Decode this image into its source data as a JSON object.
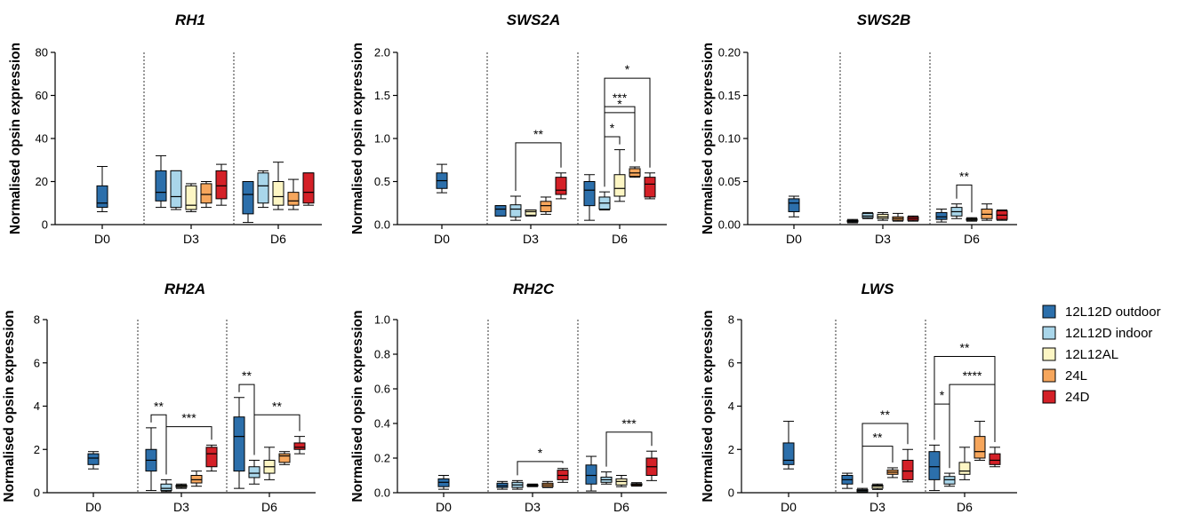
{
  "figure": {
    "y_axis_label": "Normalised opsin expression",
    "groups": [
      "D0",
      "D3",
      "D6"
    ]
  },
  "legend": [
    {
      "label": "12L12D outdoor",
      "color": "#2c6fab"
    },
    {
      "label": "12L12D indoor",
      "color": "#a9d6ea"
    },
    {
      "label": "12L12AL",
      "color": "#fdf6c4"
    },
    {
      "label": "24L",
      "color": "#f6a65c"
    },
    {
      "label": "24D",
      "color": "#d42027"
    }
  ],
  "chart_data": [
    {
      "type": "box",
      "title": "RH1",
      "ylabel": "Normalised opsin expression",
      "ylim": [
        0,
        80
      ],
      "yticks": [
        "0",
        "20",
        "40",
        "60",
        "80"
      ],
      "groups": [
        "D0",
        "D3",
        "D6"
      ],
      "series_names": [
        "12L12D outdoor",
        "12L12D indoor",
        "12L12AL",
        "24L",
        "24D"
      ],
      "boxes": [
        {
          "group": "D0",
          "series": 0,
          "min": 6,
          "q1": 8,
          "median": 10,
          "q3": 18,
          "max": 27
        },
        {
          "group": "D3",
          "series": 0,
          "min": 8,
          "q1": 11,
          "median": 15,
          "q3": 25,
          "max": 32
        },
        {
          "group": "D3",
          "series": 1,
          "min": 7,
          "q1": 8,
          "median": 13,
          "q3": 25,
          "max": 25
        },
        {
          "group": "D3",
          "series": 2,
          "min": 6,
          "q1": 7,
          "median": 9,
          "q3": 18,
          "max": 19
        },
        {
          "group": "D3",
          "series": 3,
          "min": 8,
          "q1": 10,
          "median": 14,
          "q3": 19,
          "max": 20
        },
        {
          "group": "D3",
          "series": 4,
          "min": 9,
          "q1": 12,
          "median": 18,
          "q3": 25,
          "max": 28
        },
        {
          "group": "D6",
          "series": 0,
          "min": 1,
          "q1": 5,
          "median": 14,
          "q3": 20,
          "max": 20
        },
        {
          "group": "D6",
          "series": 1,
          "min": 8,
          "q1": 10,
          "median": 18,
          "q3": 24,
          "max": 25
        },
        {
          "group": "D6",
          "series": 2,
          "min": 7,
          "q1": 9,
          "median": 13,
          "q3": 20,
          "max": 29
        },
        {
          "group": "D6",
          "series": 3,
          "min": 7,
          "q1": 9,
          "median": 11,
          "q3": 15,
          "max": 21
        },
        {
          "group": "D6",
          "series": 4,
          "min": 9,
          "q1": 10,
          "median": 15,
          "q3": 24,
          "max": 24
        }
      ],
      "annotations": []
    },
    {
      "type": "box",
      "title": "SWS2A",
      "ylabel": "Normalised opsin expression",
      "ylim": [
        0,
        2.0
      ],
      "yticks": [
        "0.0",
        "0.5",
        "1.0",
        "1.5",
        "2.0"
      ],
      "groups": [
        "D0",
        "D3",
        "D6"
      ],
      "series_names": [
        "12L12D outdoor",
        "12L12D indoor",
        "12L12AL",
        "24L",
        "24D"
      ],
      "boxes": [
        {
          "group": "D0",
          "series": 0,
          "min": 0.37,
          "q1": 0.42,
          "median": 0.51,
          "q3": 0.6,
          "max": 0.7
        },
        {
          "group": "D3",
          "series": 0,
          "min": 0.1,
          "q1": 0.1,
          "median": 0.18,
          "q3": 0.22,
          "max": 0.22
        },
        {
          "group": "D3",
          "series": 1,
          "min": 0.05,
          "q1": 0.09,
          "median": 0.18,
          "q3": 0.23,
          "max": 0.33
        },
        {
          "group": "D3",
          "series": 2,
          "min": 0.1,
          "q1": 0.11,
          "median": 0.15,
          "q3": 0.17,
          "max": 0.17
        },
        {
          "group": "D3",
          "series": 3,
          "min": 0.12,
          "q1": 0.15,
          "median": 0.22,
          "q3": 0.27,
          "max": 0.32
        },
        {
          "group": "D3",
          "series": 4,
          "min": 0.3,
          "q1": 0.35,
          "median": 0.4,
          "q3": 0.55,
          "max": 0.6
        },
        {
          "group": "D6",
          "series": 0,
          "min": 0.05,
          "q1": 0.22,
          "median": 0.4,
          "q3": 0.5,
          "max": 0.58
        },
        {
          "group": "D6",
          "series": 1,
          "min": 0.17,
          "q1": 0.18,
          "median": 0.25,
          "q3": 0.32,
          "max": 0.38
        },
        {
          "group": "D6",
          "series": 2,
          "min": 0.27,
          "q1": 0.33,
          "median": 0.42,
          "q3": 0.58,
          "max": 0.87
        },
        {
          "group": "D6",
          "series": 3,
          "min": 0.55,
          "q1": 0.56,
          "median": 0.6,
          "q3": 0.65,
          "max": 0.67
        },
        {
          "group": "D6",
          "series": 4,
          "min": 0.3,
          "q1": 0.32,
          "median": 0.47,
          "q3": 0.55,
          "max": 0.6
        }
      ],
      "annotations": [
        {
          "group": "D3",
          "from": 1,
          "to": 4,
          "y": 0.95,
          "label": "**"
        },
        {
          "group": "D6",
          "from": 1,
          "to": 2,
          "y": 1.02,
          "label": "*"
        },
        {
          "group": "D6",
          "from": 1,
          "to": 3,
          "y": 1.3,
          "label": "*"
        },
        {
          "group": "D6",
          "from": 1,
          "to": 3,
          "y": 1.37,
          "label": "***"
        },
        {
          "group": "D6",
          "from": 1,
          "to": 4,
          "y": 1.7,
          "label": "*"
        }
      ]
    },
    {
      "type": "box",
      "title": "SWS2B",
      "ylabel": "Normalised opsin expression",
      "ylim": [
        0,
        0.2
      ],
      "yticks": [
        "0.00",
        "0.05",
        "0.10",
        "0.15",
        "0.20"
      ],
      "groups": [
        "D0",
        "D3",
        "D6"
      ],
      "series_names": [
        "12L12D outdoor",
        "12L12D indoor",
        "12L12AL",
        "24L",
        "24D"
      ],
      "boxes": [
        {
          "group": "D0",
          "series": 0,
          "min": 0.009,
          "q1": 0.015,
          "median": 0.025,
          "q3": 0.03,
          "max": 0.033
        },
        {
          "group": "D3",
          "series": 0,
          "min": 0.002,
          "q1": 0.003,
          "median": 0.004,
          "q3": 0.005,
          "max": 0.006
        },
        {
          "group": "D3",
          "series": 1,
          "min": 0.007,
          "q1": 0.008,
          "median": 0.01,
          "q3": 0.013,
          "max": 0.014
        },
        {
          "group": "D3",
          "series": 2,
          "min": 0.005,
          "q1": 0.007,
          "median": 0.009,
          "q3": 0.012,
          "max": 0.014
        },
        {
          "group": "D3",
          "series": 3,
          "min": 0.004,
          "q1": 0.005,
          "median": 0.007,
          "q3": 0.009,
          "max": 0.013
        },
        {
          "group": "D3",
          "series": 4,
          "min": 0.004,
          "q1": 0.005,
          "median": 0.007,
          "q3": 0.009,
          "max": 0.01
        },
        {
          "group": "D6",
          "series": 0,
          "min": 0.003,
          "q1": 0.006,
          "median": 0.009,
          "q3": 0.014,
          "max": 0.018
        },
        {
          "group": "D6",
          "series": 1,
          "min": 0.007,
          "q1": 0.01,
          "median": 0.015,
          "q3": 0.02,
          "max": 0.024
        },
        {
          "group": "D6",
          "series": 2,
          "min": 0.004,
          "q1": 0.005,
          "median": 0.006,
          "q3": 0.007,
          "max": 0.008
        },
        {
          "group": "D6",
          "series": 3,
          "min": 0.005,
          "q1": 0.007,
          "median": 0.012,
          "q3": 0.018,
          "max": 0.024
        },
        {
          "group": "D6",
          "series": 4,
          "min": 0.005,
          "q1": 0.006,
          "median": 0.011,
          "q3": 0.016,
          "max": 0.017
        }
      ],
      "annotations": [
        {
          "group": "D6",
          "from": 1,
          "to": 2,
          "y": 0.046,
          "label": "**"
        }
      ]
    },
    {
      "type": "box",
      "title": "RH2A",
      "ylabel": "Normalised opsin expression",
      "ylim": [
        0,
        8
      ],
      "yticks": [
        "0",
        "2",
        "4",
        "6",
        "8"
      ],
      "groups": [
        "D0",
        "D3",
        "D6"
      ],
      "series_names": [
        "12L12D outdoor",
        "12L12D indoor",
        "12L12AL",
        "24L",
        "24D"
      ],
      "boxes": [
        {
          "group": "D0",
          "series": 0,
          "min": 1.1,
          "q1": 1.3,
          "median": 1.6,
          "q3": 1.8,
          "max": 1.9
        },
        {
          "group": "D3",
          "series": 0,
          "min": 0.1,
          "q1": 1.0,
          "median": 1.5,
          "q3": 2.0,
          "max": 3.0
        },
        {
          "group": "D3",
          "series": 1,
          "min": 0.05,
          "q1": 0.1,
          "median": 0.2,
          "q3": 0.4,
          "max": 0.6
        },
        {
          "group": "D3",
          "series": 2,
          "min": 0.2,
          "q1": 0.25,
          "median": 0.3,
          "q3": 0.35,
          "max": 0.4
        },
        {
          "group": "D3",
          "series": 3,
          "min": 0.3,
          "q1": 0.45,
          "median": 0.6,
          "q3": 0.8,
          "max": 1.0
        },
        {
          "group": "D3",
          "series": 4,
          "min": 1.0,
          "q1": 1.2,
          "median": 1.8,
          "q3": 2.1,
          "max": 2.2
        },
        {
          "group": "D6",
          "series": 0,
          "min": 0.2,
          "q1": 1.0,
          "median": 2.6,
          "q3": 3.5,
          "max": 4.4
        },
        {
          "group": "D6",
          "series": 1,
          "min": 0.4,
          "q1": 0.7,
          "median": 0.9,
          "q3": 1.2,
          "max": 1.5
        },
        {
          "group": "D6",
          "series": 2,
          "min": 0.6,
          "q1": 0.9,
          "median": 1.2,
          "q3": 1.5,
          "max": 2.1
        },
        {
          "group": "D6",
          "series": 3,
          "min": 1.3,
          "q1": 1.4,
          "median": 1.7,
          "q3": 1.8,
          "max": 1.9
        },
        {
          "group": "D6",
          "series": 4,
          "min": 1.8,
          "q1": 2.0,
          "median": 2.1,
          "q3": 2.3,
          "max": 2.6
        }
      ],
      "annotations": [
        {
          "group": "D3",
          "from": 0,
          "to": 1,
          "y": 3.6,
          "label": "**"
        },
        {
          "group": "D3",
          "from": 1,
          "to": 4,
          "y": 3.05,
          "label": "***"
        },
        {
          "group": "D6",
          "from": 0,
          "to": 1,
          "y": 5.0,
          "label": "**"
        },
        {
          "group": "D6",
          "from": 1,
          "to": 4,
          "y": 3.6,
          "label": "**"
        }
      ]
    },
    {
      "type": "box",
      "title": "RH2C",
      "ylabel": "Normalised opsin expression",
      "ylim": [
        0,
        1.0
      ],
      "yticks": [
        "0.0",
        "0.2",
        "0.4",
        "0.6",
        "0.8",
        "1.0"
      ],
      "groups": [
        "D0",
        "D3",
        "D6"
      ],
      "series_names": [
        "12L12D outdoor",
        "12L12D indoor",
        "12L12AL",
        "24L",
        "24D"
      ],
      "boxes": [
        {
          "group": "D0",
          "series": 0,
          "min": 0.02,
          "q1": 0.035,
          "median": 0.06,
          "q3": 0.08,
          "max": 0.1
        },
        {
          "group": "D3",
          "series": 0,
          "min": 0.02,
          "q1": 0.03,
          "median": 0.04,
          "q3": 0.055,
          "max": 0.065
        },
        {
          "group": "D3",
          "series": 1,
          "min": 0.02,
          "q1": 0.03,
          "median": 0.045,
          "q3": 0.06,
          "max": 0.07
        },
        {
          "group": "D3",
          "series": 2,
          "min": 0.035,
          "q1": 0.038,
          "median": 0.042,
          "q3": 0.046,
          "max": 0.05
        },
        {
          "group": "D3",
          "series": 3,
          "min": 0.03,
          "q1": 0.034,
          "median": 0.045,
          "q3": 0.055,
          "max": 0.065
        },
        {
          "group": "D3",
          "series": 4,
          "min": 0.06,
          "q1": 0.075,
          "median": 0.1,
          "q3": 0.13,
          "max": 0.14
        },
        {
          "group": "D6",
          "series": 0,
          "min": 0.01,
          "q1": 0.05,
          "median": 0.1,
          "q3": 0.16,
          "max": 0.21
        },
        {
          "group": "D6",
          "series": 1,
          "min": 0.05,
          "q1": 0.06,
          "median": 0.075,
          "q3": 0.09,
          "max": 0.12
        },
        {
          "group": "D6",
          "series": 2,
          "min": 0.035,
          "q1": 0.045,
          "median": 0.065,
          "q3": 0.08,
          "max": 0.1
        },
        {
          "group": "D6",
          "series": 3,
          "min": 0.038,
          "q1": 0.042,
          "median": 0.048,
          "q3": 0.052,
          "max": 0.058
        },
        {
          "group": "D6",
          "series": 4,
          "min": 0.07,
          "q1": 0.1,
          "median": 0.15,
          "q3": 0.2,
          "max": 0.24
        }
      ],
      "annotations": [
        {
          "group": "D3",
          "from": 1,
          "to": 4,
          "y": 0.18,
          "label": "*"
        },
        {
          "group": "D6",
          "from": 1,
          "to": 4,
          "y": 0.35,
          "label": "***"
        }
      ]
    },
    {
      "type": "box",
      "title": "LWS",
      "ylabel": "Normalised opsin expression",
      "ylim": [
        0,
        8
      ],
      "yticks": [
        "0",
        "2",
        "4",
        "6",
        "8"
      ],
      "groups": [
        "D0",
        "D3",
        "D6"
      ],
      "series_names": [
        "12L12D outdoor",
        "12L12D indoor",
        "12L12AL",
        "24L",
        "24D"
      ],
      "boxes": [
        {
          "group": "D0",
          "series": 0,
          "min": 1.1,
          "q1": 1.3,
          "median": 1.5,
          "q3": 2.3,
          "max": 3.3
        },
        {
          "group": "D3",
          "series": 0,
          "min": 0.2,
          "q1": 0.4,
          "median": 0.6,
          "q3": 0.8,
          "max": 0.9
        },
        {
          "group": "D3",
          "series": 1,
          "min": 0.02,
          "q1": 0.05,
          "median": 0.1,
          "q3": 0.15,
          "max": 0.2
        },
        {
          "group": "D3",
          "series": 2,
          "min": 0.15,
          "q1": 0.2,
          "median": 0.3,
          "q3": 0.35,
          "max": 0.4
        },
        {
          "group": "D3",
          "series": 3,
          "min": 0.7,
          "q1": 0.85,
          "median": 0.95,
          "q3": 1.05,
          "max": 1.15
        },
        {
          "group": "D3",
          "series": 4,
          "min": 0.5,
          "q1": 0.6,
          "median": 1.0,
          "q3": 1.5,
          "max": 2.0
        },
        {
          "group": "D6",
          "series": 0,
          "min": 0.1,
          "q1": 0.6,
          "median": 1.2,
          "q3": 1.9,
          "max": 2.2
        },
        {
          "group": "D6",
          "series": 1,
          "min": 0.3,
          "q1": 0.4,
          "median": 0.6,
          "q3": 0.75,
          "max": 0.9
        },
        {
          "group": "D6",
          "series": 2,
          "min": 0.6,
          "q1": 0.85,
          "median": 1.0,
          "q3": 1.4,
          "max": 2.1
        },
        {
          "group": "D6",
          "series": 3,
          "min": 1.5,
          "q1": 1.6,
          "median": 1.9,
          "q3": 2.6,
          "max": 3.3
        },
        {
          "group": "D6",
          "series": 4,
          "min": 1.2,
          "q1": 1.3,
          "median": 1.5,
          "q3": 1.8,
          "max": 2.1
        }
      ],
      "annotations": [
        {
          "group": "D3",
          "from": 1,
          "to": 4,
          "y": 3.2,
          "label": "**"
        },
        {
          "group": "D3",
          "from": 1,
          "to": 3,
          "y": 2.15,
          "label": "**"
        },
        {
          "group": "D6",
          "from": 0,
          "to": 1,
          "y": 4.1,
          "label": "*"
        },
        {
          "group": "D6",
          "from": 1,
          "to": 4,
          "y": 5.0,
          "label": "****"
        },
        {
          "group": "D6",
          "from": 0,
          "to": 4,
          "y": 6.3,
          "label": "**"
        }
      ]
    }
  ]
}
